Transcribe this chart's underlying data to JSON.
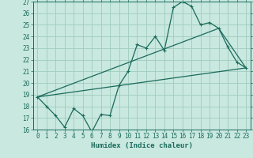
{
  "xlabel": "Humidex (Indice chaleur)",
  "bg_color": "#c8e8e0",
  "grid_color": "#a0ccbb",
  "line_color": "#1a6a5a",
  "xlim": [
    -0.5,
    23.5
  ],
  "ylim": [
    16,
    27
  ],
  "yticks": [
    16,
    17,
    18,
    19,
    20,
    21,
    22,
    23,
    24,
    25,
    26,
    27
  ],
  "xticks": [
    0,
    1,
    2,
    3,
    4,
    5,
    6,
    7,
    8,
    9,
    10,
    11,
    12,
    13,
    14,
    15,
    16,
    17,
    18,
    19,
    20,
    21,
    22,
    23
  ],
  "xtick_labels": [
    "0",
    "1",
    "2",
    "3",
    "4",
    "5",
    "6",
    "7",
    "8",
    "9",
    "10",
    "11",
    "12",
    "13",
    "14",
    "15",
    "16",
    "17",
    "18",
    "19",
    "20",
    "21",
    "22",
    "23"
  ],
  "line1_x": [
    0,
    1,
    2,
    3,
    4,
    5,
    6,
    7,
    8,
    9,
    10,
    11,
    12,
    13,
    14,
    15,
    16,
    17,
    18,
    19,
    20,
    21,
    22,
    23
  ],
  "line1_y": [
    18.8,
    18.0,
    17.2,
    16.2,
    17.8,
    17.2,
    15.8,
    17.3,
    17.2,
    19.8,
    21.0,
    23.3,
    23.0,
    24.0,
    22.8,
    26.5,
    27.0,
    26.6,
    25.0,
    25.2,
    24.7,
    23.1,
    21.8,
    21.3
  ],
  "line2_x": [
    0,
    23
  ],
  "line2_y": [
    18.8,
    21.3
  ],
  "line3_x": [
    0,
    20,
    23
  ],
  "line3_y": [
    18.8,
    24.7,
    21.3
  ]
}
